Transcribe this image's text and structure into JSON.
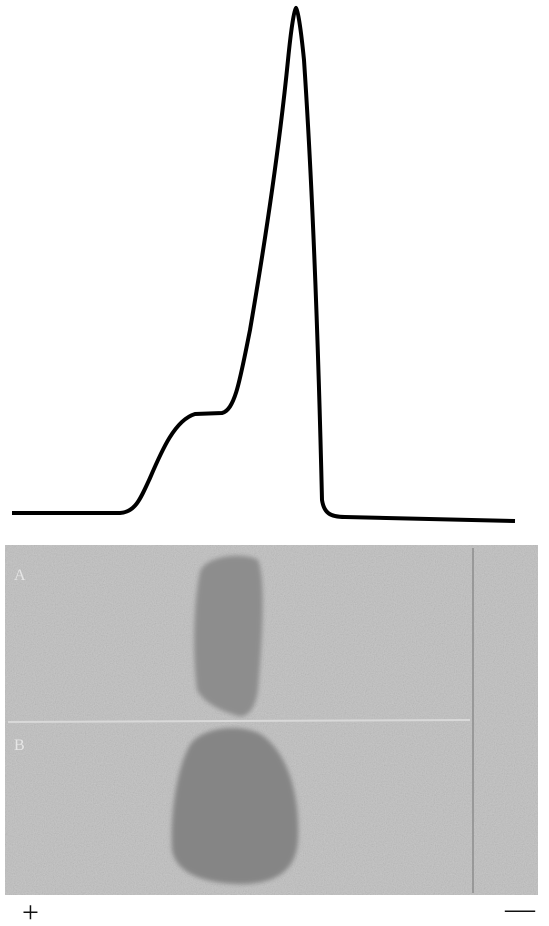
{
  "gel": {
    "lanes": [
      {
        "label": "A"
      },
      {
        "label": "B"
      }
    ]
  },
  "electrodes": {
    "anode": "+",
    "cathode": "—"
  }
}
